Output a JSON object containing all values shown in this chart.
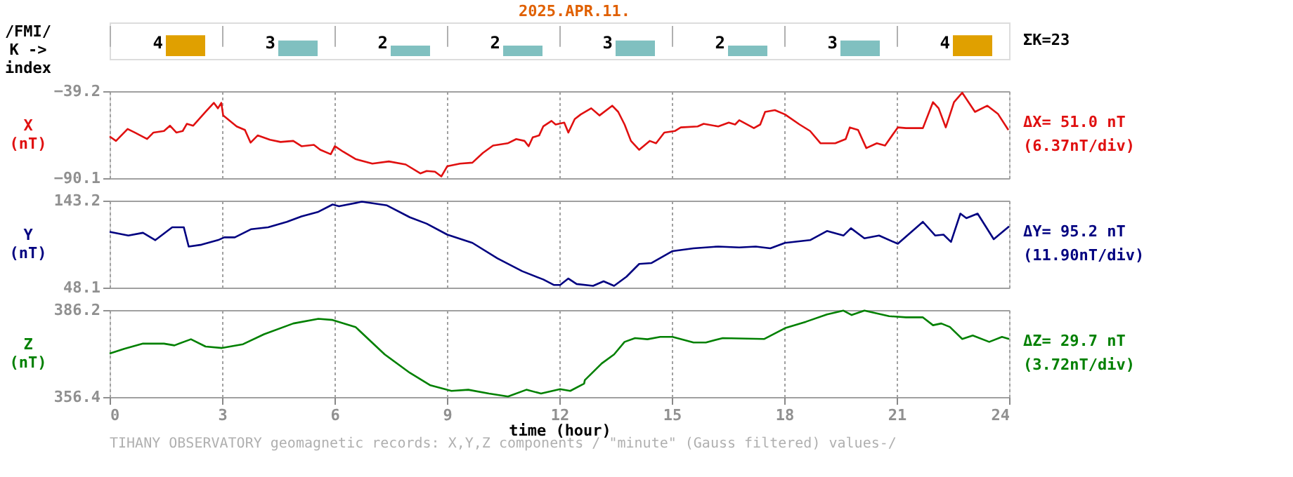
{
  "chart_data": [
    {
      "type": "bar",
      "title": "2025.APR.11.",
      "ylabel": "/FMI/\nK ->\nindex",
      "categories": [
        null,
        null,
        null,
        null,
        null,
        null,
        null,
        null
      ],
      "values": [
        4,
        3,
        2,
        2,
        3,
        2,
        3,
        4
      ],
      "colors": [
        "#e0a000",
        "#80c0c0",
        "#80c0c0",
        "#80c0c0",
        "#80c0c0",
        "#80c0c0",
        "#80c0c0",
        "#e0a000"
      ],
      "data_labels": true,
      "grid": "x",
      "tick_labels": false,
      "annotations": [
        "ΣK=23"
      ]
    },
    {
      "type": "line",
      "ylabel": "X\n(nT)",
      "xlim": [
        0,
        24
      ],
      "xticks": [
        0,
        3,
        6,
        9,
        12,
        15,
        18,
        21,
        24
      ],
      "ylim": [
        -90.1,
        -39.2
      ],
      "yticks": [
        -90.1,
        -39.2
      ],
      "grid": true,
      "tick_labels": "y",
      "annotations": [
        "ΔX= 51.0 nT",
        "(6.37nT/div)"
      ],
      "series": [
        {
          "color": "#e01010",
          "x": [
            0,
            0.17,
            0.48,
            0.67,
            1.0,
            1.17,
            1.45,
            1.61,
            1.78,
            1.95,
            2.06,
            2.23,
            2.56,
            2.78,
            2.89,
            2.98,
            3.03,
            3.39,
            3.61,
            3.76,
            3.95,
            4.28,
            4.56,
            4.9,
            5.12,
            5.45,
            5.62,
            5.9,
            6.01,
            6.23,
            6.56,
            7.01,
            7.45,
            7.9,
            8.29,
            8.46,
            8.68,
            8.85,
            9.01,
            9.35,
            9.68,
            9.96,
            10.23,
            10.62,
            10.85,
            11.07,
            11.18,
            11.29,
            11.46,
            11.57,
            11.79,
            11.9,
            12.13,
            12.24,
            12.41,
            12.57,
            12.85,
            13.07,
            13.41,
            13.57,
            13.74,
            13.91,
            14.13,
            14.41,
            14.58,
            14.8,
            15.08,
            15.24,
            15.69,
            15.85,
            16.24,
            16.52,
            16.69,
            16.8,
            17.19,
            17.36,
            17.49,
            17.75,
            18.02,
            18.41,
            18.69,
            18.97,
            19.36,
            19.64,
            19.75,
            19.97,
            20.19,
            20.47,
            20.69,
            21.03,
            21.25,
            21.7,
            21.97,
            22.12,
            22.31,
            22.53,
            22.75,
            23.09,
            23.42,
            23.7,
            23.98
          ],
          "values": [
            -65.7,
            -68.3,
            -61.3,
            -63.4,
            -67.2,
            -63.4,
            -62.5,
            -59.4,
            -63.4,
            -62.5,
            -58.3,
            -59.4,
            -51.3,
            -46.0,
            -49.2,
            -46.0,
            -53.4,
            -59.8,
            -61.9,
            -69.3,
            -65.1,
            -67.6,
            -68.9,
            -68.3,
            -71.4,
            -70.6,
            -73.5,
            -76.1,
            -71.4,
            -74.6,
            -78.9,
            -81.6,
            -80.3,
            -82.1,
            -87.3,
            -85.9,
            -86.3,
            -89.1,
            -83.1,
            -81.6,
            -81.0,
            -75.3,
            -71.0,
            -69.7,
            -67.2,
            -68.3,
            -71.4,
            -66.2,
            -65.1,
            -59.8,
            -56.6,
            -58.7,
            -57.6,
            -63.4,
            -55.5,
            -52.8,
            -49.2,
            -53.4,
            -47.7,
            -51.3,
            -58.7,
            -68.3,
            -73.5,
            -68.3,
            -69.7,
            -63.4,
            -62.5,
            -60.4,
            -59.8,
            -58.3,
            -59.8,
            -57.6,
            -58.7,
            -56.2,
            -60.8,
            -58.7,
            -51.3,
            -50.3,
            -52.8,
            -58.7,
            -62.5,
            -69.7,
            -69.7,
            -67.2,
            -60.4,
            -61.9,
            -72.5,
            -69.7,
            -71.0,
            -60.4,
            -60.8,
            -60.8,
            -45.6,
            -49.2,
            -60.4,
            -45.6,
            -40.1,
            -51.3,
            -47.7,
            -52.4,
            -61.9
          ]
        }
      ]
    },
    {
      "type": "line",
      "ylabel": "Y\n(nT)",
      "xlim": [
        0,
        24
      ],
      "xticks": [
        0,
        3,
        6,
        9,
        12,
        15,
        18,
        21,
        24
      ],
      "ylim": [
        48.1,
        143.2
      ],
      "yticks": [
        48.1,
        143.2
      ],
      "grid": true,
      "tick_labels": "y",
      "annotations": [
        "ΔY= 95.2 nT",
        "(11.90nT/div)"
      ],
      "series": [
        {
          "color": "#000080",
          "x": [
            0,
            0.5,
            0.89,
            1.22,
            1.67,
            1.98,
            2.11,
            2.45,
            2.89,
            3.06,
            3.34,
            3.78,
            4.23,
            4.73,
            5.12,
            5.57,
            5.95,
            6.12,
            6.73,
            7.4,
            8.01,
            8.46,
            9.01,
            9.68,
            10.35,
            11.01,
            11.57,
            11.85,
            12.02,
            12.24,
            12.46,
            12.9,
            13.18,
            13.46,
            13.79,
            14.13,
            14.46,
            15.02,
            15.58,
            16.24,
            16.8,
            17.24,
            17.63,
            18.02,
            18.69,
            19.14,
            19.58,
            19.78,
            20.14,
            20.53,
            21.03,
            21.7,
            22.03,
            22.25,
            22.45,
            22.7,
            22.86,
            23.16,
            23.59,
            24.0
          ],
          "values": [
            109,
            105,
            108,
            100,
            114,
            114,
            93,
            95,
            100,
            103,
            103,
            112,
            114,
            120,
            126,
            131,
            139,
            137,
            142,
            138,
            125,
            118,
            106,
            97,
            80,
            66,
            57,
            51,
            51,
            58,
            52,
            50,
            55,
            50,
            60,
            74,
            75,
            88,
            91,
            93,
            92,
            93,
            91,
            97,
            100,
            110,
            105,
            113,
            102,
            105,
            96,
            120,
            105,
            106,
            98,
            129,
            124,
            129,
            101,
            115
          ]
        }
      ]
    },
    {
      "type": "line",
      "ylabel": "Z\n(nT)",
      "xlabel": "time (hour)",
      "xlim": [
        0,
        24
      ],
      "xticks": [
        0,
        3,
        6,
        9,
        12,
        15,
        18,
        21,
        24
      ],
      "ylim": [
        356.4,
        386.2
      ],
      "yticks": [
        356.4,
        386.2
      ],
      "grid": true,
      "annotations": [
        "ΔZ= 29.7 nT",
        "(3.72nT/div)",
        "TIHANY OBSERVATORY   geomagnetic records:  X,Y,Z  components   / \"minute\" (Gauss filtered) values-/"
      ],
      "series": [
        {
          "color": "#008000",
          "x": [
            0,
            0.39,
            0.89,
            1.45,
            1.73,
            2.17,
            2.56,
            3.0,
            3.56,
            4.12,
            4.9,
            5.57,
            5.95,
            6.56,
            7.34,
            8.01,
            8.56,
            9.12,
            9.57,
            10.12,
            10.63,
            11.12,
            11.51,
            12.02,
            12.29,
            12.66,
            12.68,
            13.13,
            13.46,
            13.74,
            14.02,
            14.35,
            14.69,
            15.02,
            15.58,
            15.91,
            16.36,
            17.47,
            18.02,
            18.58,
            19.14,
            19.58,
            19.8,
            20.14,
            20.8,
            21.25,
            21.7,
            21.97,
            22.19,
            22.42,
            22.75,
            23.03,
            23.47,
            23.81,
            24.0
          ],
          "values": [
            371.3,
            372.9,
            374.7,
            374.7,
            374.1,
            376.2,
            373.7,
            373.2,
            374.5,
            377.9,
            381.6,
            383.2,
            382.8,
            380.4,
            371.0,
            364.7,
            360.4,
            358.5,
            358.9,
            357.6,
            356.6,
            358.9,
            357.6,
            359.1,
            358.5,
            361.0,
            362.2,
            367.9,
            371.0,
            375.3,
            376.6,
            376.2,
            377.0,
            377.0,
            375.1,
            375.1,
            376.6,
            376.3,
            380.0,
            382.2,
            384.7,
            386.0,
            384.5,
            386.0,
            384.1,
            383.7,
            383.7,
            381.0,
            381.6,
            380.4,
            376.3,
            377.5,
            375.3,
            377.0,
            376.3
          ]
        }
      ]
    }
  ]
}
